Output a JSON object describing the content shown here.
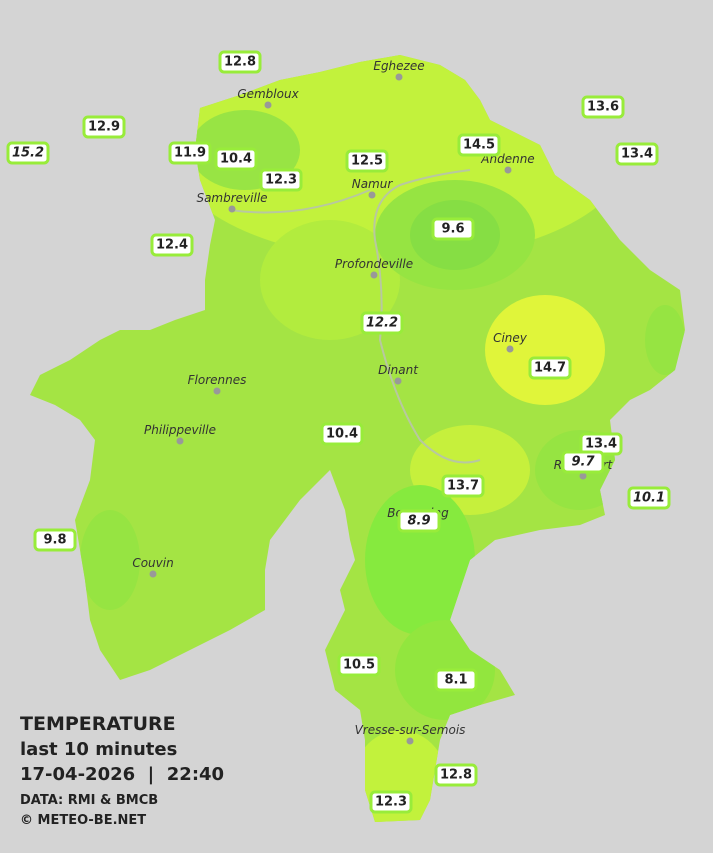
{
  "map": {
    "stations": [
      12.8,
      12.9,
      15.2,
      11.9,
      10.4,
      12.3,
      12.5,
      14.5,
      13.6,
      13.4,
      12.4,
      9.6,
      12.2,
      14.7,
      10.4,
      13.4,
      9.7,
      13.7,
      10.1,
      8.9,
      9.8,
      10.5,
      8.1,
      12.8,
      12.3
    ],
    "cities": [
      "Eghezee",
      "Gembloux",
      "Andenne",
      "Namur",
      "Sambreville",
      "Profondeville",
      "Ciney",
      "Dinant",
      "Florennes",
      "Philippeville",
      "Rochefort",
      "Beauraing",
      "Couvin",
      "Vresse-sur-Semois"
    ]
  },
  "legend": {
    "title": "TEMPERATURE",
    "period": "last 10 minutes",
    "datetime": "17-04-2026  |  22:40",
    "source": "DATA: RMI & BMCB",
    "copyright": "© METEO-BE.NET"
  }
}
